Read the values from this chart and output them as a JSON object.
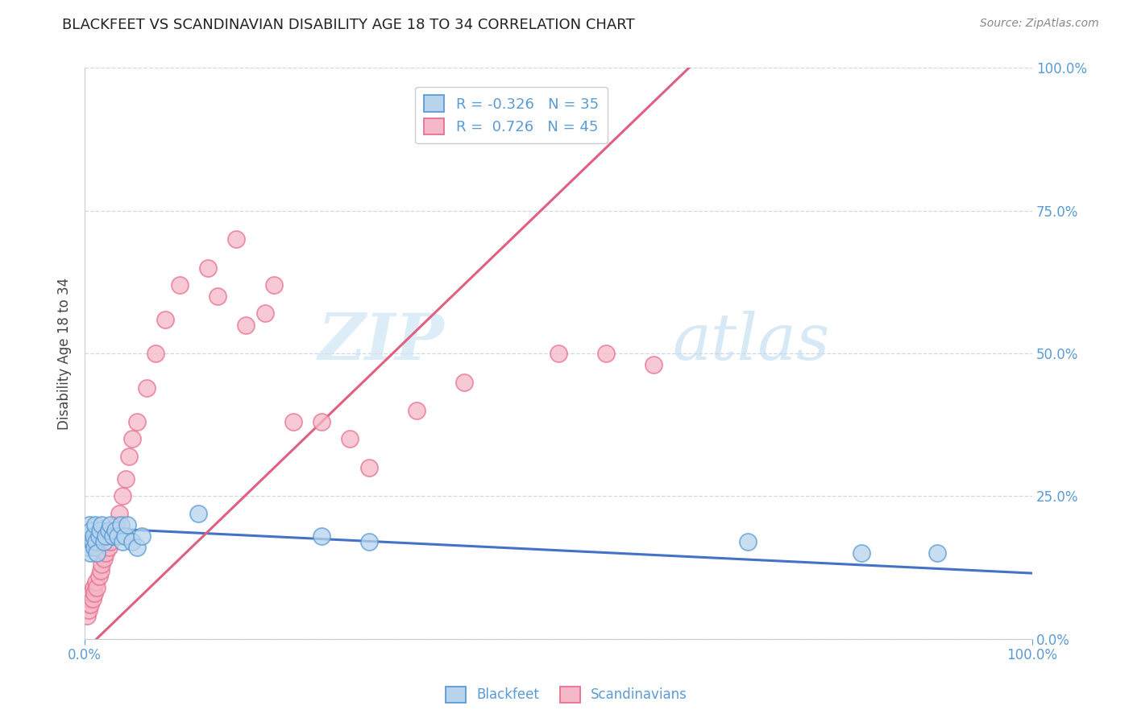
{
  "title": "BLACKFEET VS SCANDINAVIAN DISABILITY AGE 18 TO 34 CORRELATION CHART",
  "source": "Source: ZipAtlas.com",
  "ylabel": "Disability Age 18 to 34",
  "xlim": [
    0,
    1.0
  ],
  "ylim": [
    0,
    1.0
  ],
  "ytick_positions": [
    0.0,
    0.25,
    0.5,
    0.75,
    1.0
  ],
  "ytick_labels": [
    "0.0%",
    "25.0%",
    "50.0%",
    "75.0%",
    "100.0%"
  ],
  "xtick_positions": [
    0.0,
    1.0
  ],
  "xtick_labels": [
    "0.0%",
    "100.0%"
  ],
  "watermark_zip": "ZIP",
  "watermark_atlas": "atlas",
  "blackfeet_R": "-0.326",
  "blackfeet_N": "35",
  "scandinavian_R": "0.726",
  "scandinavian_N": "45",
  "blackfeet_fill": "#b8d4ed",
  "scandinavian_fill": "#f5b8c8",
  "blackfeet_edge": "#5b9bd5",
  "scandinavian_edge": "#e87090",
  "blackfeet_line_color": "#4472c4",
  "scandinavian_line_color": "#e06080",
  "background_color": "#ffffff",
  "tick_color": "#5b9bd5",
  "grid_color": "#d0d8e8",
  "blackfeet_scatter_x": [
    0.002,
    0.003,
    0.004,
    0.005,
    0.006,
    0.007,
    0.008,
    0.009,
    0.01,
    0.011,
    0.012,
    0.013,
    0.015,
    0.016,
    0.018,
    0.02,
    0.022,
    0.025,
    0.027,
    0.03,
    0.032,
    0.035,
    0.038,
    0.04,
    0.042,
    0.045,
    0.05,
    0.055,
    0.06,
    0.12,
    0.25,
    0.3,
    0.7,
    0.82,
    0.9
  ],
  "blackfeet_scatter_y": [
    0.17,
    0.16,
    0.18,
    0.2,
    0.15,
    0.19,
    0.17,
    0.18,
    0.16,
    0.2,
    0.17,
    0.15,
    0.18,
    0.19,
    0.2,
    0.17,
    0.18,
    0.19,
    0.2,
    0.18,
    0.19,
    0.18,
    0.2,
    0.17,
    0.18,
    0.2,
    0.17,
    0.16,
    0.18,
    0.22,
    0.18,
    0.17,
    0.17,
    0.15,
    0.15
  ],
  "scandinavian_scatter_x": [
    0.002,
    0.003,
    0.004,
    0.005,
    0.006,
    0.007,
    0.008,
    0.009,
    0.01,
    0.012,
    0.013,
    0.015,
    0.017,
    0.018,
    0.02,
    0.022,
    0.025,
    0.027,
    0.03,
    0.033,
    0.036,
    0.04,
    0.043,
    0.047,
    0.05,
    0.055,
    0.065,
    0.075,
    0.085,
    0.1,
    0.13,
    0.16,
    0.2,
    0.25,
    0.3,
    0.35,
    0.4,
    0.5,
    0.55,
    0.6,
    0.14,
    0.17,
    0.19,
    0.22,
    0.28
  ],
  "scandinavian_scatter_y": [
    0.04,
    0.06,
    0.05,
    0.07,
    0.06,
    0.08,
    0.07,
    0.09,
    0.08,
    0.1,
    0.09,
    0.11,
    0.12,
    0.13,
    0.14,
    0.15,
    0.16,
    0.17,
    0.18,
    0.2,
    0.22,
    0.25,
    0.28,
    0.32,
    0.35,
    0.38,
    0.44,
    0.5,
    0.56,
    0.62,
    0.65,
    0.7,
    0.62,
    0.38,
    0.3,
    0.4,
    0.45,
    0.5,
    0.5,
    0.48,
    0.6,
    0.55,
    0.57,
    0.38,
    0.35
  ],
  "bf_line_x0": 0.0,
  "bf_line_x1": 1.0,
  "bf_line_y0": 0.195,
  "bf_line_y1": 0.115,
  "sc_line_x0": 0.0,
  "sc_line_x1": 0.65,
  "sc_line_y0": -0.02,
  "sc_line_y1": 1.02
}
